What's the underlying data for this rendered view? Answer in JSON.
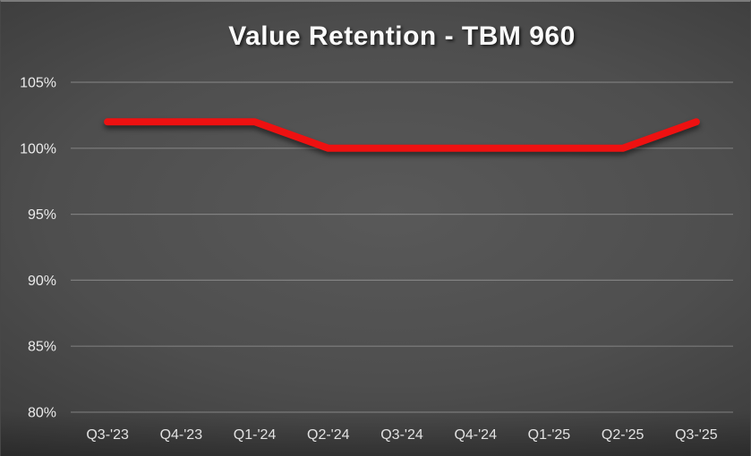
{
  "window": {
    "background_center": "#595959",
    "background_edge": "#262626",
    "top_border_color": "#7b7b7b",
    "text_color": "#ebebeb"
  },
  "chart_data": {
    "type": "line",
    "title": "Value Retention - TBM 960",
    "categories": [
      "Q3-'23",
      "Q4-'23",
      "Q1-'24",
      "Q2-'24",
      "Q3-'24",
      "Q4-'24",
      "Q1-'25",
      "Q2-'25",
      "Q3-'25"
    ],
    "series": [
      {
        "name": "Value Retention",
        "values": [
          102,
          102,
          102,
          100,
          100,
          100,
          100,
          100,
          102
        ],
        "color": "#ee1111"
      }
    ],
    "xlabel": "",
    "ylabel": "",
    "ylim": [
      80,
      105
    ],
    "ytick_step": 5,
    "ytick_labels": [
      "80%",
      "85%",
      "90%",
      "95%",
      "100%",
      "105%"
    ],
    "grid": "horizontal",
    "legend": "none",
    "gridline_color": "rgba(255,255,255,0.27)"
  }
}
